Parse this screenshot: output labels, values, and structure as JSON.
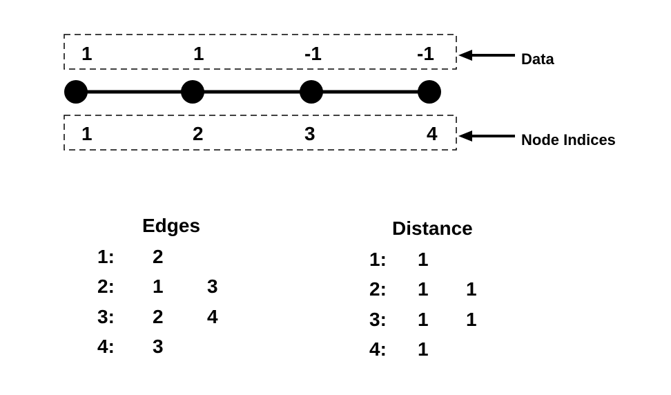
{
  "diagram": {
    "data_values": [
      "1",
      "1",
      "-1",
      "-1"
    ],
    "data_label": "Data",
    "node_indices": [
      "1",
      "2",
      "3",
      "4"
    ],
    "node_label": "Node Indices"
  },
  "edges_table": {
    "title": "Edges",
    "rows": [
      {
        "key": "1:",
        "values": [
          "2",
          ""
        ]
      },
      {
        "key": "2:",
        "values": [
          "1",
          "3"
        ]
      },
      {
        "key": "3:",
        "values": [
          "2",
          "4"
        ]
      },
      {
        "key": "4:",
        "values": [
          "3",
          ""
        ]
      }
    ]
  },
  "distance_table": {
    "title": "Distance",
    "rows": [
      {
        "key": "1:",
        "values": [
          "1",
          ""
        ]
      },
      {
        "key": "2:",
        "values": [
          "1",
          "1"
        ]
      },
      {
        "key": "3:",
        "values": [
          "1",
          "1"
        ]
      },
      {
        "key": "4:",
        "values": [
          "1",
          ""
        ]
      }
    ]
  }
}
